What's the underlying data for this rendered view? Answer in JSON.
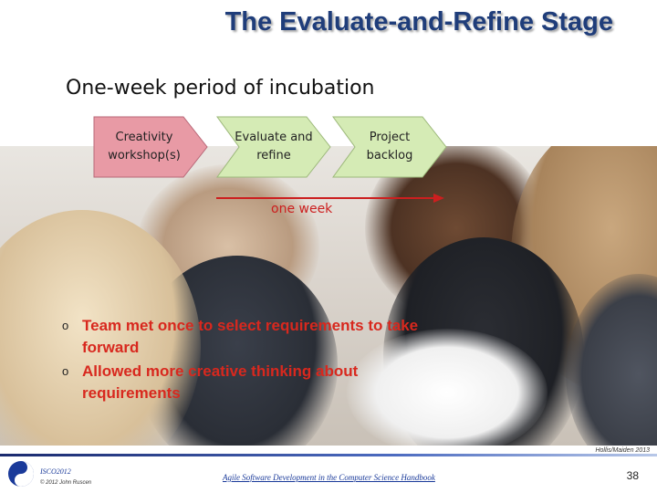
{
  "title": "The Evaluate-and-Refine Stage",
  "subtitle": "One-week period of incubation",
  "process": [
    {
      "label": "Creativity\nworkshop(s)",
      "fill": "#e89aa5"
    },
    {
      "label": "Evaluate and\nrefine",
      "fill": "#d5ebb5"
    },
    {
      "label": "Project\nbacklog",
      "fill": "#d5ebb5"
    }
  ],
  "duration_label": "one week",
  "bullets": [
    "Team met once to select requirements to take forward",
    "Allowed more creative thinking about requirements"
  ],
  "credit": "Hollis/Maiden 2013",
  "footer": {
    "event": "ISCO2012",
    "copyright": "© 2012 John Ruscen",
    "book": "Agile Software Development in the Computer Science Handbook",
    "page": "38"
  },
  "colors": {
    "title": "#1f3d7a",
    "accent": "#d8281e",
    "arrow": "#cc1f1f"
  }
}
